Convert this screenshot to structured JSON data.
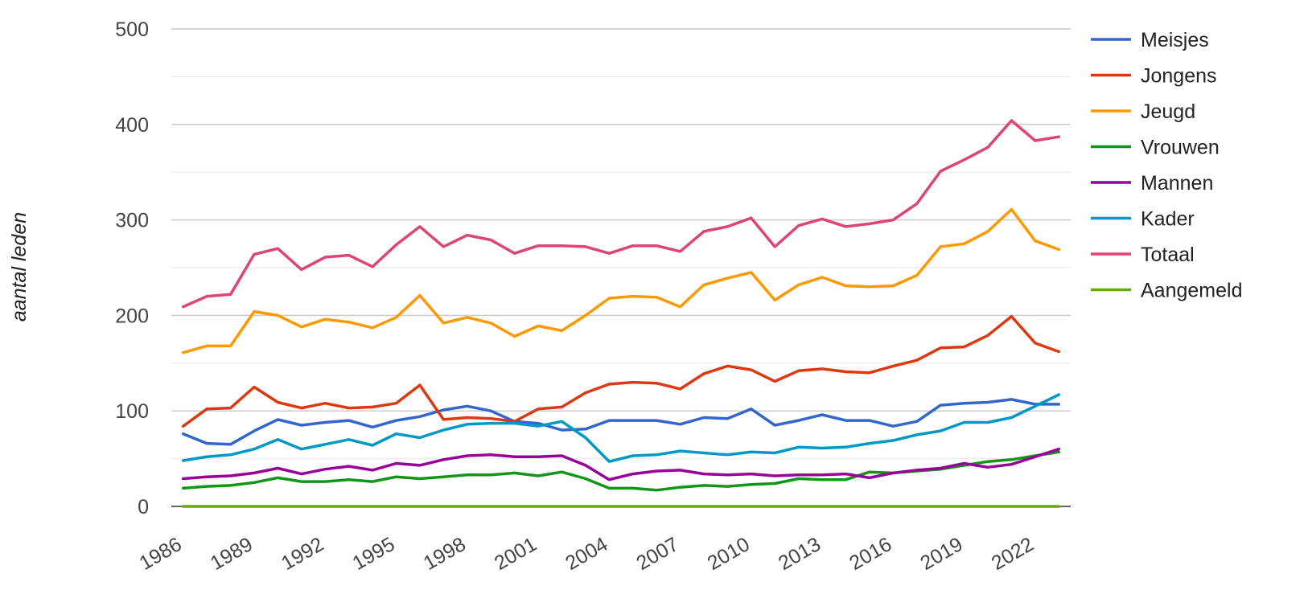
{
  "chart_data": {
    "type": "line",
    "title": "",
    "xlabel": "",
    "ylabel": "aantal leden",
    "ylim": [
      0,
      500
    ],
    "y_ticks": [
      0,
      100,
      200,
      300,
      400,
      500
    ],
    "x_ticks": [
      1986,
      1989,
      1992,
      1995,
      1998,
      2001,
      2004,
      2007,
      2010,
      2013,
      2016,
      2019,
      2022
    ],
    "x_tick_labels": [
      "1986",
      "1989",
      "1992",
      "1995",
      "1998",
      "2001",
      "2004",
      "2007",
      "2010",
      "2013",
      "2016",
      "2019",
      "2022"
    ],
    "y_tick_labels": [
      "0",
      "100",
      "200",
      "300",
      "400",
      "500"
    ],
    "xlim": [
      1985.5,
      2023.5
    ],
    "grid": true,
    "legend_position": "right",
    "x": [
      1986,
      1987,
      1988,
      1989,
      1990,
      1991,
      1992,
      1993,
      1994,
      1995,
      1996,
      1997,
      1998,
      1999,
      2000,
      2001,
      2002,
      2003,
      2004,
      2005,
      2006,
      2007,
      2008,
      2009,
      2010,
      2011,
      2012,
      2013,
      2014,
      2015,
      2016,
      2017,
      2018,
      2019,
      2020,
      2021,
      2022,
      2023
    ],
    "series": [
      {
        "name": "Meisjes",
        "color": "#3366cc",
        "values": [
          76,
          66,
          65,
          79,
          91,
          85,
          88,
          90,
          83,
          90,
          94,
          101,
          105,
          100,
          89,
          87,
          80,
          81,
          90,
          90,
          90,
          86,
          93,
          92,
          102,
          85,
          90,
          96,
          90,
          90,
          84,
          89,
          106,
          108,
          109,
          112,
          107,
          107
        ]
      },
      {
        "name": "Jongens",
        "color": "#dc3912",
        "values": [
          84,
          102,
          103,
          125,
          109,
          103,
          108,
          103,
          104,
          108,
          127,
          91,
          93,
          92,
          89,
          102,
          104,
          119,
          128,
          130,
          129,
          123,
          139,
          147,
          143,
          131,
          142,
          144,
          141,
          140,
          147,
          153,
          166,
          167,
          179,
          199,
          171,
          162
        ]
      },
      {
        "name": "Jeugd",
        "color": "#ff9900",
        "values": [
          161,
          168,
          168,
          204,
          200,
          188,
          196,
          193,
          187,
          198,
          221,
          192,
          198,
          192,
          178,
          189,
          184,
          200,
          218,
          220,
          219,
          209,
          232,
          239,
          245,
          216,
          232,
          240,
          231,
          230,
          231,
          242,
          272,
          275,
          288,
          311,
          278,
          269
        ]
      },
      {
        "name": "Vrouwen",
        "color": "#109618",
        "values": [
          19,
          21,
          22,
          25,
          30,
          26,
          26,
          28,
          26,
          31,
          29,
          31,
          33,
          33,
          35,
          32,
          36,
          29,
          19,
          19,
          17,
          20,
          22,
          21,
          23,
          24,
          29,
          28,
          28,
          36,
          35,
          37,
          39,
          43,
          47,
          49,
          53,
          57
        ]
      },
      {
        "name": "Mannen",
        "color": "#990099",
        "values": [
          29,
          31,
          32,
          35,
          40,
          34,
          39,
          42,
          38,
          45,
          43,
          49,
          53,
          54,
          52,
          52,
          53,
          43,
          28,
          34,
          37,
          38,
          34,
          33,
          34,
          32,
          33,
          33,
          34,
          30,
          35,
          38,
          40,
          45,
          41,
          44,
          52,
          60
        ]
      },
      {
        "name": "Kader",
        "color": "#0099c6",
        "values": [
          48,
          52,
          54,
          60,
          70,
          60,
          65,
          70,
          64,
          76,
          72,
          80,
          86,
          87,
          87,
          84,
          89,
          72,
          47,
          53,
          54,
          58,
          56,
          54,
          57,
          56,
          62,
          61,
          62,
          66,
          69,
          75,
          79,
          88,
          88,
          93,
          105,
          117
        ]
      },
      {
        "name": "Totaal",
        "color": "#dd4477",
        "values": [
          209,
          220,
          222,
          264,
          270,
          248,
          261,
          263,
          251,
          274,
          293,
          272,
          284,
          279,
          265,
          273,
          273,
          272,
          265,
          273,
          273,
          267,
          288,
          293,
          302,
          272,
          294,
          301,
          293,
          296,
          300,
          317,
          351,
          363,
          376,
          404,
          383,
          387
        ]
      },
      {
        "name": "Aangemeld",
        "color": "#66aa00",
        "values": [
          0,
          0,
          0,
          0,
          0,
          0,
          0,
          0,
          0,
          0,
          0,
          0,
          0,
          0,
          0,
          0,
          0,
          0,
          0,
          0,
          0,
          0,
          0,
          0,
          0,
          0,
          0,
          0,
          0,
          0,
          0,
          0,
          0,
          0,
          0,
          0,
          0,
          0
        ]
      }
    ]
  }
}
